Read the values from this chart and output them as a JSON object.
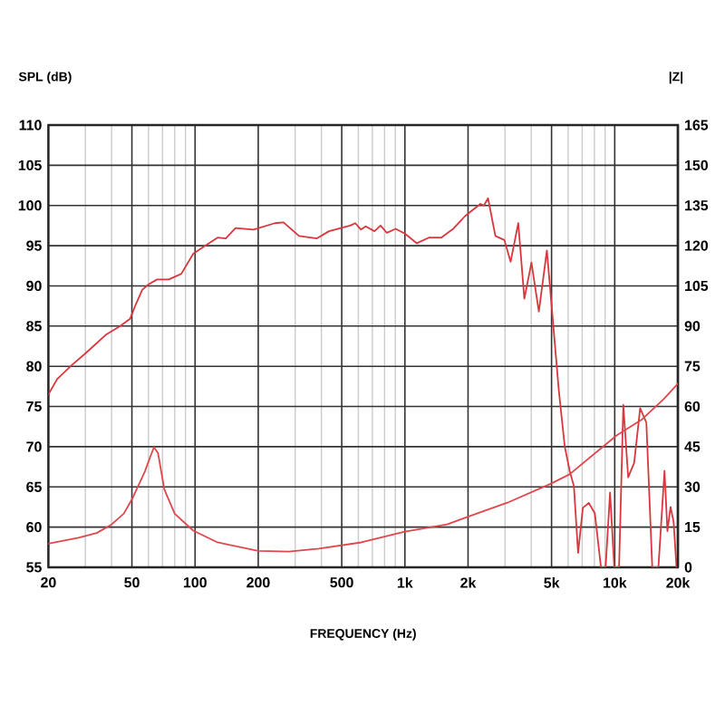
{
  "chart_data": {
    "type": "line",
    "xlabel": "FREQUENCY (Hz)",
    "ylabel": "SPL (dB)",
    "y2label": "|Z|",
    "log": "x",
    "grid": true,
    "marker": "none",
    "line_style": "solid",
    "xlim": [
      20,
      20000
    ],
    "ylim": [
      55,
      110
    ],
    "y2lim": [
      0,
      165
    ],
    "xticks": [
      {
        "value": 20,
        "label": "20"
      },
      {
        "value": 30,
        "label": null
      },
      {
        "value": 40,
        "label": null
      },
      {
        "value": 50,
        "label": "50"
      },
      {
        "value": 60,
        "label": null
      },
      {
        "value": 70,
        "label": null
      },
      {
        "value": 80,
        "label": null
      },
      {
        "value": 90,
        "label": null
      },
      {
        "value": 100,
        "label": "100"
      },
      {
        "value": 200,
        "label": "200"
      },
      {
        "value": 300,
        "label": null
      },
      {
        "value": 400,
        "label": null
      },
      {
        "value": 500,
        "label": "500"
      },
      {
        "value": 600,
        "label": null
      },
      {
        "value": 700,
        "label": null
      },
      {
        "value": 800,
        "label": null
      },
      {
        "value": 900,
        "label": null
      },
      {
        "value": 1000,
        "label": "1k"
      },
      {
        "value": 2000,
        "label": "2k"
      },
      {
        "value": 3000,
        "label": null
      },
      {
        "value": 4000,
        "label": null
      },
      {
        "value": 5000,
        "label": "5k"
      },
      {
        "value": 6000,
        "label": null
      },
      {
        "value": 7000,
        "label": null
      },
      {
        "value": 8000,
        "label": null
      },
      {
        "value": 9000,
        "label": null
      },
      {
        "value": 10000,
        "label": "10k"
      },
      {
        "value": 20000,
        "label": "20k"
      }
    ],
    "yticks": [
      55,
      60,
      65,
      70,
      75,
      80,
      85,
      90,
      95,
      100,
      105,
      110
    ],
    "y2ticks": [
      0,
      15,
      30,
      45,
      60,
      75,
      90,
      105,
      120,
      135,
      150,
      165
    ],
    "series": [
      {
        "color": "#d9363e",
        "x": [
          20,
          22,
          26,
          30,
          37.5,
          44,
          49,
          52,
          56,
          60,
          66,
          75,
          86,
          98,
          112,
          128,
          140,
          156,
          190,
          240,
          264,
          313,
          381,
          435,
          549,
          580,
          618,
          650,
          716,
          766,
          820,
          903,
          1000,
          1140,
          1300,
          1490,
          1700,
          1940,
          2290,
          2380,
          2490,
          2700,
          2980,
          3190,
          3470,
          3710,
          4010,
          4350,
          4750,
          5060,
          5410,
          5780,
          6100,
          6390,
          6690,
          7050,
          7530,
          8040,
          8600,
          9050,
          9500,
          9950,
          10490,
          10990,
          11590,
          12380,
          13220,
          14150,
          15100,
          16150,
          17270,
          17830,
          18450,
          19080,
          19700
        ],
        "values": [
          76.5,
          78.4,
          80.2,
          81.6,
          83.9,
          85.0,
          85.9,
          87.6,
          89.5,
          90.2,
          90.8,
          90.8,
          91.5,
          94.0,
          95.0,
          96.0,
          95.9,
          97.2,
          97.0,
          97.8,
          97.9,
          96.2,
          95.9,
          96.8,
          97.5,
          97.8,
          97.0,
          97.4,
          96.8,
          97.5,
          96.6,
          97.1,
          96.5,
          95.3,
          96.0,
          96.0,
          97.1,
          98.7,
          100.2,
          100.0,
          100.9,
          96.2,
          95.7,
          93.0,
          97.8,
          88.4,
          92.9,
          86.8,
          94.4,
          86.0,
          77.1,
          70.0,
          67.0,
          65.1,
          56.8,
          62.4,
          63.0,
          61.7,
          55,
          55,
          64.3,
          55,
          55,
          75.2,
          66.2,
          68.0,
          74.8,
          73.0,
          55,
          55,
          67.0,
          59.5,
          62.5,
          60.7,
          55
        ]
      },
      {
        "color": "#e0474c",
        "axis": "y2",
        "x": [
          20,
          27.8,
          34,
          40,
          45.7,
          50.3,
          57.7,
          61,
          63.7,
          66.6,
          71.4,
          80,
          98,
          128,
          200,
          280,
          390,
          620,
          1000,
          1590,
          2000,
          3080,
          5000,
          6090,
          10240,
          13400,
          17200,
          20000
        ],
        "values": [
          8.8,
          11,
          12.8,
          16,
          20,
          25.7,
          35.8,
          41,
          44.8,
          42.6,
          29,
          20,
          13.7,
          9.3,
          6.1,
          5.9,
          7,
          9.3,
          13.3,
          16,
          18.9,
          24.1,
          31.3,
          34.7,
          49.3,
          55,
          62.9,
          68.5
        ]
      }
    ]
  }
}
